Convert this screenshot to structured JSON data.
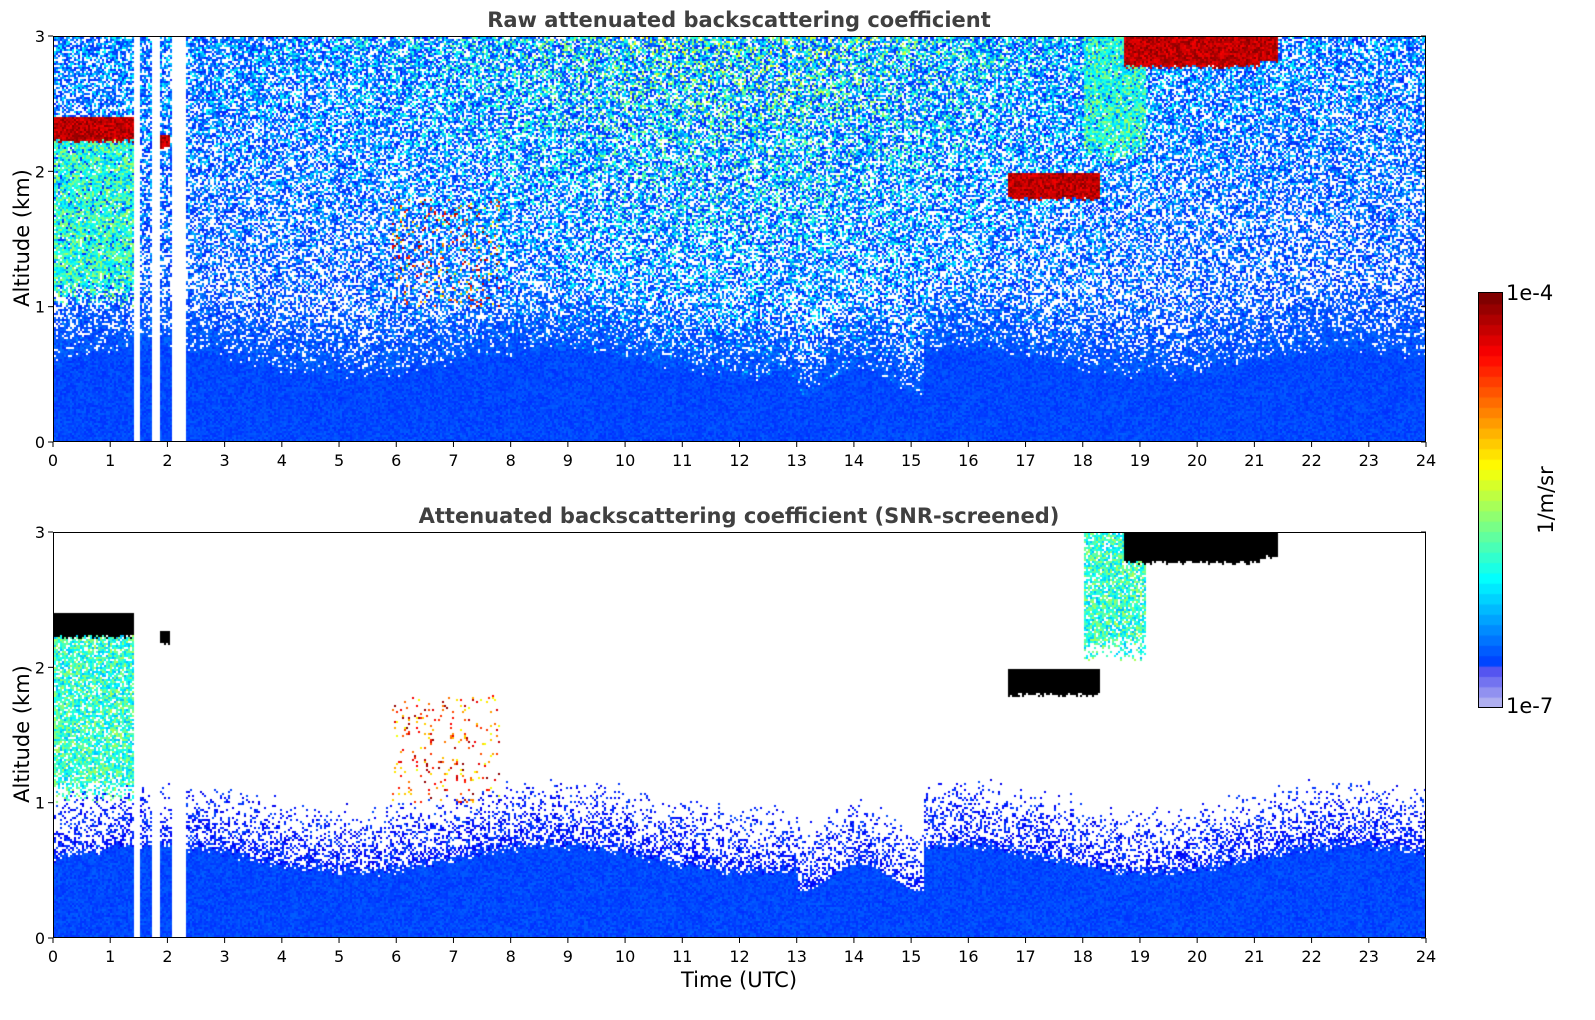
{
  "chart_data": [
    {
      "type": "heatmap",
      "id": "raw",
      "title": "Raw attenuated backscattering coefficient",
      "xlabel": "",
      "ylabel": "Altitude (km)",
      "xlim": [
        0,
        24
      ],
      "ylim": [
        0,
        3
      ],
      "xticks": [
        "0",
        "1",
        "2",
        "3",
        "4",
        "5",
        "6",
        "7",
        "8",
        "9",
        "10",
        "11",
        "12",
        "13",
        "14",
        "15",
        "16",
        "17",
        "18",
        "19",
        "20",
        "21",
        "22",
        "23",
        "24"
      ],
      "yticks": [
        "0",
        "1",
        "2",
        "3"
      ],
      "colorscale": "jet",
      "screened": false
    },
    {
      "type": "heatmap",
      "id": "screened",
      "title": "Attenuated backscattering coefficient (SNR-screened)",
      "xlabel": "Time (UTC)",
      "ylabel": "Altitude (km)",
      "xlim": [
        0,
        24
      ],
      "ylim": [
        0,
        3
      ],
      "xticks": [
        "0",
        "1",
        "2",
        "3",
        "4",
        "5",
        "6",
        "7",
        "8",
        "9",
        "10",
        "11",
        "12",
        "13",
        "14",
        "15",
        "16",
        "17",
        "18",
        "19",
        "20",
        "21",
        "22",
        "23",
        "24"
      ],
      "yticks": [
        "0",
        "1",
        "2",
        "3"
      ],
      "colorscale": "jet",
      "screened": true
    }
  ],
  "colorbar": {
    "max_label": "1e-4",
    "min_label": "1e-7",
    "unit_label": "1/m/sr",
    "scale": "log",
    "range": [
      1e-07,
      0.0001
    ]
  },
  "features": {
    "data_gaps_hours": [
      [
        1.4,
        1.5
      ],
      [
        1.7,
        1.85
      ],
      [
        2.05,
        2.3
      ]
    ],
    "cloud_layers": [
      {
        "start": 0.0,
        "end": 1.4,
        "base_km": 2.25,
        "top_km": 2.42
      },
      {
        "start": 1.82,
        "end": 2.0,
        "base_km": 2.2,
        "top_km": 2.28
      },
      {
        "start": 16.7,
        "end": 18.3,
        "base_km": 1.82,
        "top_km": 2.0
      },
      {
        "start": 18.7,
        "end": 21.1,
        "base_km": 2.8,
        "top_km": 3.0
      },
      {
        "start": 21.1,
        "end": 21.4,
        "base_km": 2.84,
        "top_km": 3.0
      }
    ],
    "precipitation_streaks": [
      {
        "start": 0.0,
        "end": 1.4,
        "top_km": 2.3,
        "bottom_km": 1.0
      },
      {
        "start": 18.0,
        "end": 19.1,
        "top_km": 3.0,
        "bottom_km": 2.05
      }
    ]
  }
}
